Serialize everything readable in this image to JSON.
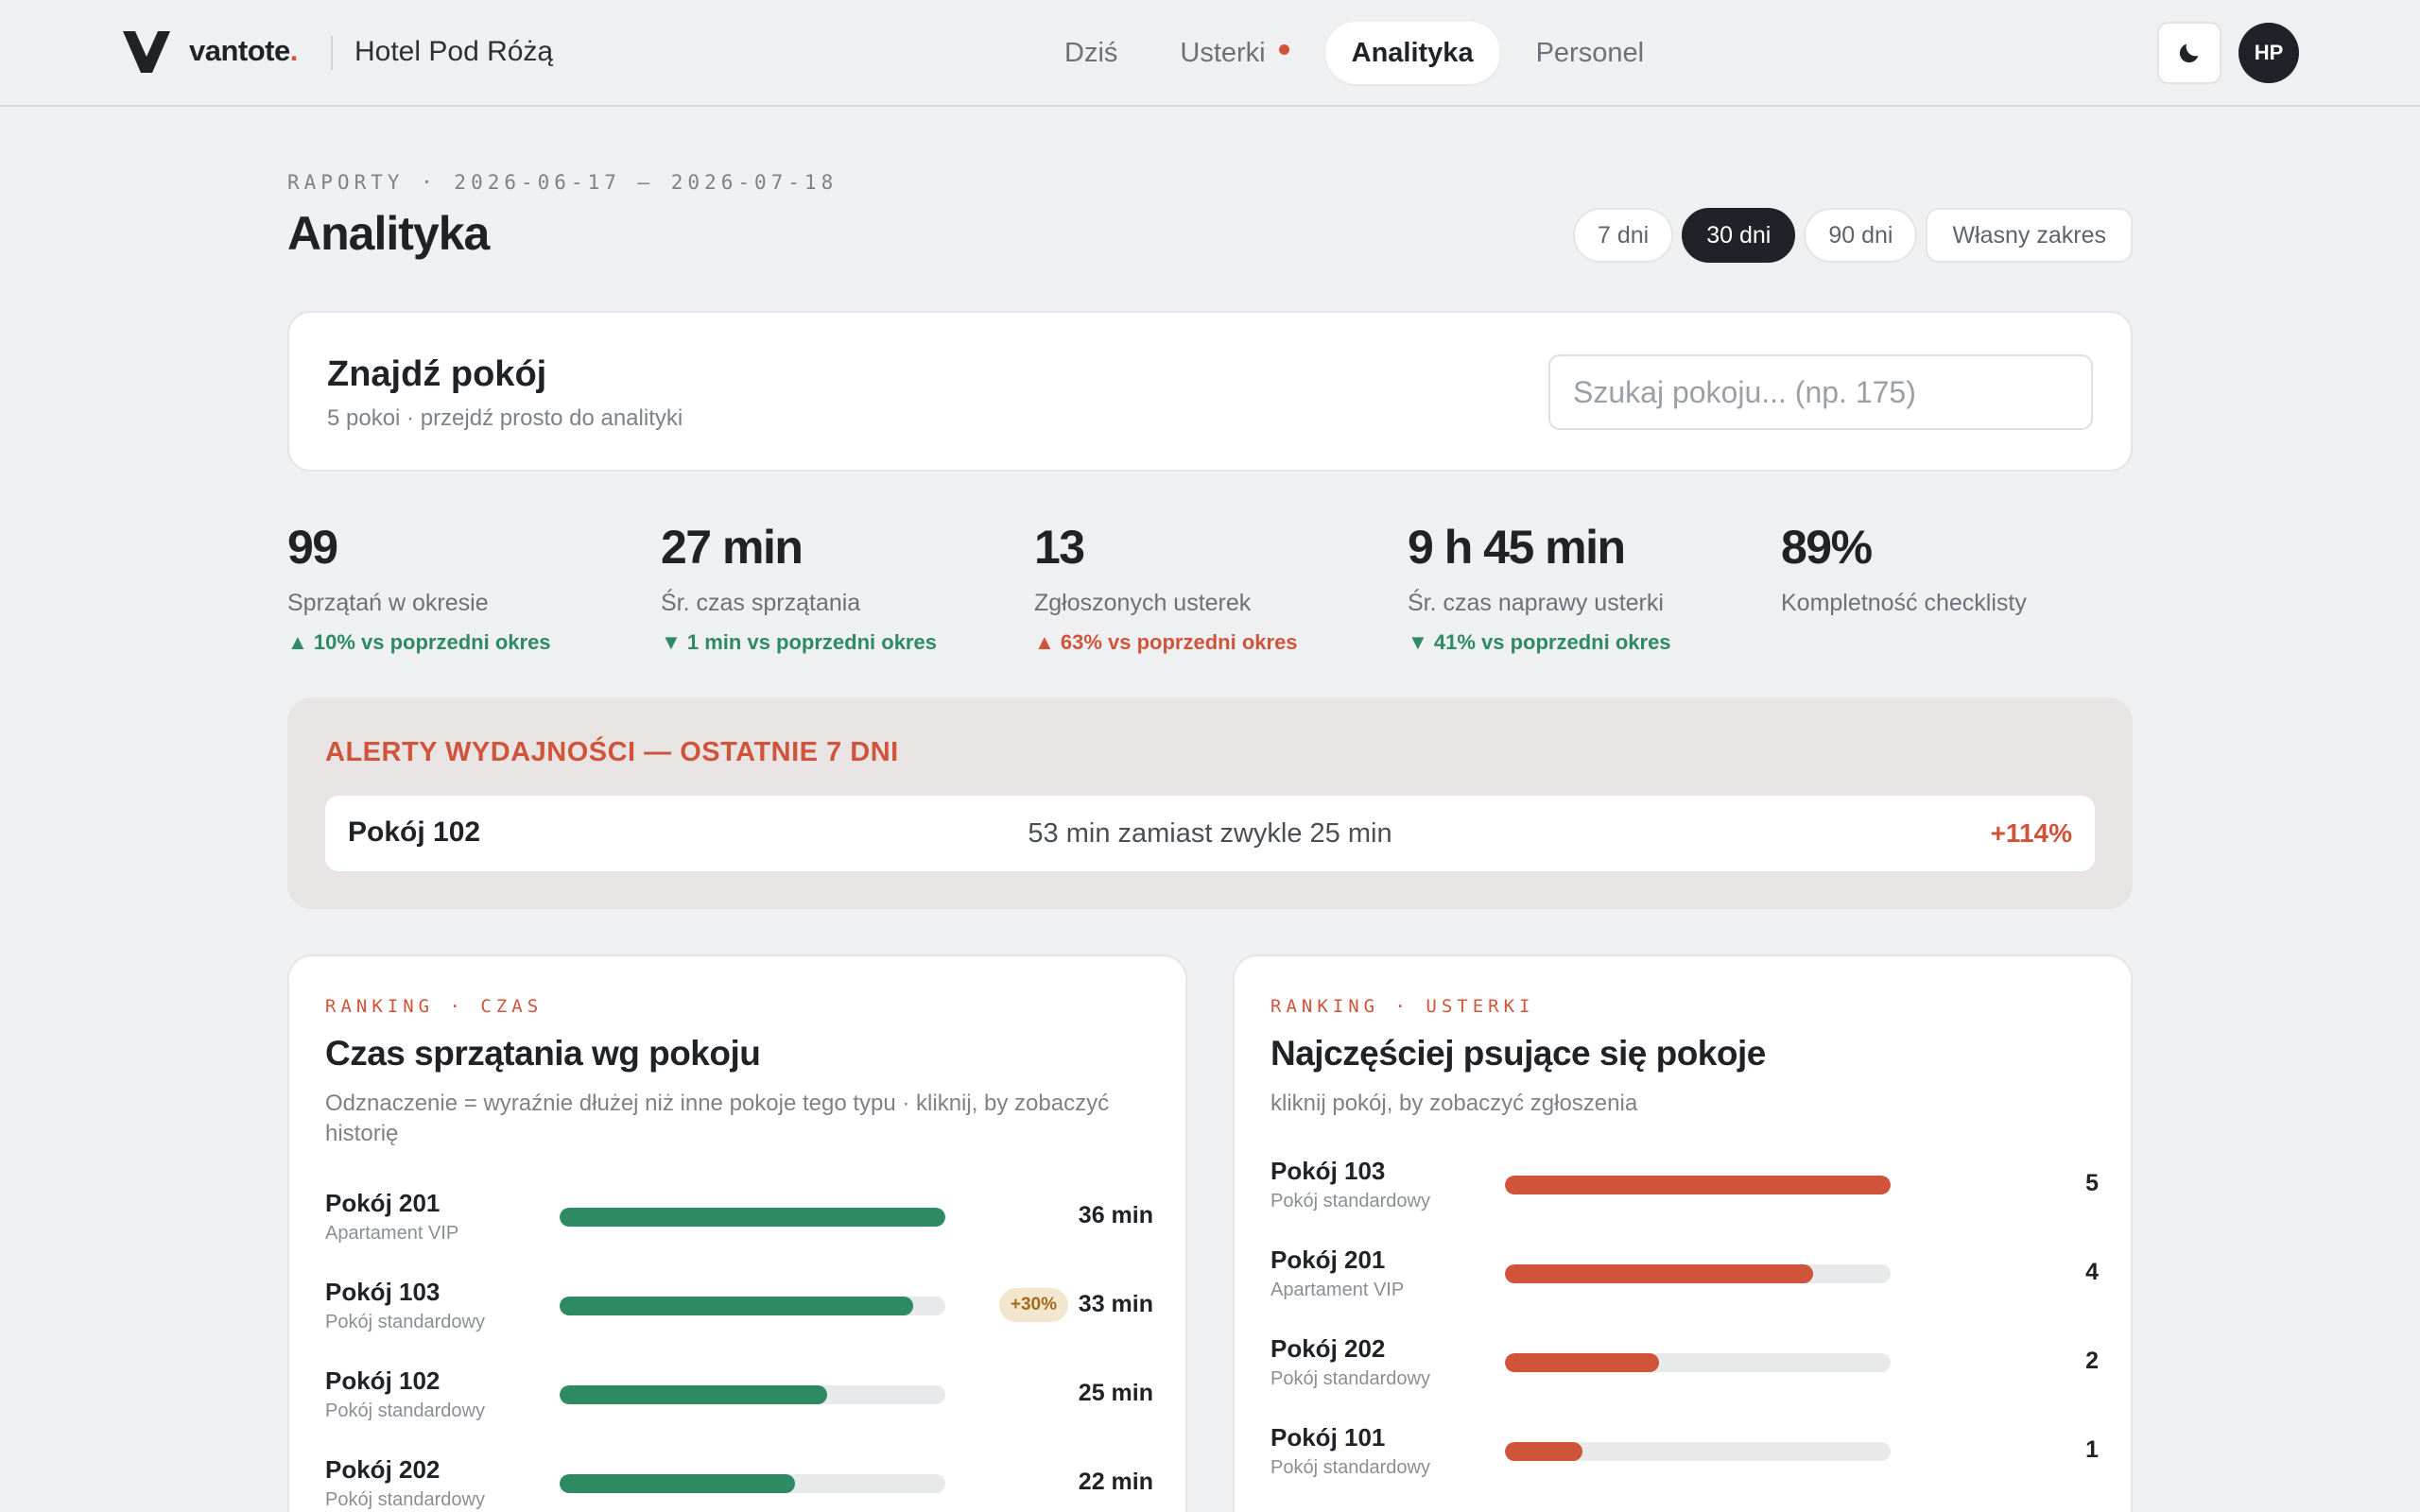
{
  "brand": {
    "name": "vantote",
    "dot": ".",
    "hotel": "Hotel Pod Różą"
  },
  "nav": {
    "items": [
      {
        "label": "Dziś",
        "active": false,
        "badge": false
      },
      {
        "label": "Usterki",
        "active": false,
        "badge": true
      },
      {
        "label": "Analityka",
        "active": true,
        "badge": false
      },
      {
        "label": "Personel",
        "active": false,
        "badge": false
      }
    ],
    "theme_icon": "moon-icon",
    "avatar": "HP"
  },
  "header": {
    "eyebrow": "RAPORTY · 2026-06-17 – 2026-07-18",
    "title": "Analityka",
    "ranges": [
      {
        "label": "7 dni",
        "active": false
      },
      {
        "label": "30 dni",
        "active": true
      },
      {
        "label": "90 dni",
        "active": false
      },
      {
        "label": "Własny zakres",
        "active": false
      }
    ]
  },
  "search": {
    "title": "Znajdź pokój",
    "subtitle": "5 pokoi · przejdź prosto do analityki",
    "placeholder": "Szukaj pokoju... (np. 175)"
  },
  "stats": [
    {
      "value": "99",
      "label": "Sprzątań w okresie",
      "delta": "▲ 10% vs poprzedni okres",
      "trend": "good"
    },
    {
      "value": "27 min",
      "label": "Śr. czas sprzątania",
      "delta": "▼ 1 min vs poprzedni okres",
      "trend": "good"
    },
    {
      "value": "13",
      "label": "Zgłoszonych usterek",
      "delta": "▲ 63% vs poprzedni okres",
      "trend": "bad"
    },
    {
      "value": "9 h 45 min",
      "label": "Śr. czas naprawy usterki",
      "delta": "▼ 41% vs poprzedni okres",
      "trend": "good"
    },
    {
      "value": "89%",
      "label": "Kompletność checklisty",
      "delta": "",
      "trend": ""
    }
  ],
  "alerts": {
    "title": "ALERTY WYDAJNOŚCI — OSTATNIE 7 DNI",
    "items": [
      {
        "room": "Pokój 102",
        "text": "53 min zamiast zwykle 25 min",
        "pct": "+114%"
      }
    ]
  },
  "ranking_time": {
    "eyebrow": "RANKING · CZAS",
    "title": "Czas sprzątania wg pokoju",
    "subtitle": "Odznaczenie = wyraźnie dłużej niż inne pokoje tego typu · kliknij, by zobaczyć historię",
    "max": 36,
    "rows": [
      {
        "room": "Pokój 201",
        "type": "Apartament VIP",
        "value": 36,
        "value_label": "36 min",
        "badge": ""
      },
      {
        "room": "Pokój 103",
        "type": "Pokój standardowy",
        "value": 33,
        "value_label": "33 min",
        "badge": "+30%"
      },
      {
        "room": "Pokój 102",
        "type": "Pokój standardowy",
        "value": 25,
        "value_label": "25 min",
        "badge": ""
      },
      {
        "room": "Pokój 202",
        "type": "Pokój standardowy",
        "value": 22,
        "value_label": "22 min",
        "badge": ""
      }
    ]
  },
  "ranking_faults": {
    "eyebrow": "RANKING · USTERKI",
    "title": "Najczęściej psujące się pokoje",
    "subtitle": "kliknij pokój, by zobaczyć zgłoszenia",
    "max": 5,
    "rows": [
      {
        "room": "Pokój 103",
        "type": "Pokój standardowy",
        "value": 5,
        "value_label": "5"
      },
      {
        "room": "Pokój 201",
        "type": "Apartament VIP",
        "value": 4,
        "value_label": "4"
      },
      {
        "room": "Pokój 202",
        "type": "Pokój standardowy",
        "value": 2,
        "value_label": "2"
      },
      {
        "room": "Pokój 101",
        "type": "Pokój standardowy",
        "value": 1,
        "value_label": "1"
      }
    ]
  },
  "colors": {
    "accent": "#d0543a",
    "good": "#2d8a63",
    "dark": "#1f2328"
  }
}
